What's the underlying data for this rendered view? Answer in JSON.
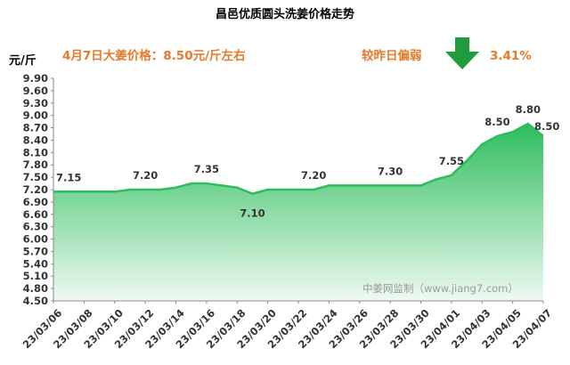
{
  "chart_data": {
    "type": "area",
    "title": "昌邑优质圆头洗姜价格走势",
    "ylabel": "元/斤",
    "xlabel": "",
    "ylim": [
      4.5,
      9.9
    ],
    "ytick_step": 0.3,
    "yticks": [
      "4.50",
      "4.80",
      "5.10",
      "5.40",
      "5.70",
      "6.00",
      "6.30",
      "6.60",
      "6.90",
      "7.20",
      "7.50",
      "7.80",
      "8.10",
      "8.40",
      "8.70",
      "9.00",
      "9.30",
      "9.60",
      "9.90"
    ],
    "x": [
      "23/03/06",
      "23/03/07",
      "23/03/08",
      "23/03/09",
      "23/03/10",
      "23/03/11",
      "23/03/12",
      "23/03/13",
      "23/03/14",
      "23/03/15",
      "23/03/16",
      "23/03/17",
      "23/03/18",
      "23/03/19",
      "23/03/20",
      "23/03/21",
      "23/03/22",
      "23/03/23",
      "23/03/24",
      "23/03/25",
      "23/03/26",
      "23/03/27",
      "23/03/28",
      "23/03/29",
      "23/03/30",
      "23/03/31",
      "23/04/01",
      "23/04/02",
      "23/04/03",
      "23/04/04",
      "23/04/05",
      "23/04/06",
      "23/04/07"
    ],
    "xtick_labels": [
      "23/03/06",
      "23/03/08",
      "23/03/10",
      "23/03/12",
      "23/03/14",
      "23/03/16",
      "23/03/18",
      "23/03/20",
      "23/03/22",
      "23/03/24",
      "23/03/26",
      "23/03/28",
      "23/03/30",
      "23/04/01",
      "23/04/03",
      "23/04/05",
      "23/04/07"
    ],
    "values": [
      7.15,
      7.15,
      7.15,
      7.15,
      7.15,
      7.2,
      7.2,
      7.2,
      7.25,
      7.35,
      7.35,
      7.3,
      7.25,
      7.1,
      7.2,
      7.2,
      7.2,
      7.2,
      7.3,
      7.3,
      7.3,
      7.3,
      7.3,
      7.3,
      7.3,
      7.45,
      7.55,
      7.9,
      8.3,
      8.5,
      8.6,
      8.8,
      8.5
    ],
    "data_labels": [
      {
        "index": 1,
        "text": "7.15"
      },
      {
        "index": 6,
        "text": "7.20"
      },
      {
        "index": 10,
        "text": "7.35"
      },
      {
        "index": 13,
        "text": "7.10"
      },
      {
        "index": 17,
        "text": "7.20"
      },
      {
        "index": 22,
        "text": "7.30"
      },
      {
        "index": 26,
        "text": "7.55"
      },
      {
        "index": 29,
        "text": "8.50"
      },
      {
        "index": 31,
        "text": "8.80"
      },
      {
        "index": 32,
        "text": "8.50"
      }
    ],
    "grid": false,
    "line_color": "#2dbd5c",
    "fill_color_top": "#2dbd5c",
    "fill_color_bottom": "#eefaf1"
  },
  "annotations": {
    "price_note": "4月7日大姜价格：8.50元/斤左右",
    "change_label": "较昨日偏弱",
    "change_value": "3.41%",
    "change_arrow": "down-arrow-icon",
    "arrow_color": "#1f9c3b",
    "text_color": "#e8782a"
  },
  "watermark": "中姜网监制（www.jiang7.com）"
}
